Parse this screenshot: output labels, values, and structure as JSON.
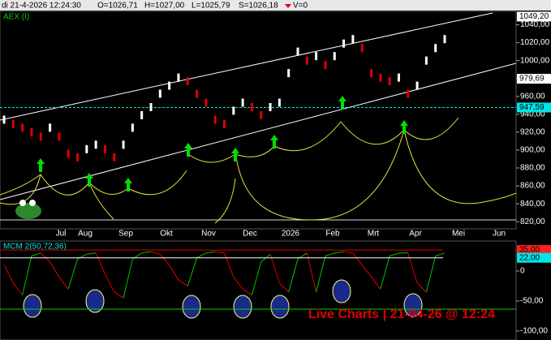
{
  "header": {
    "datetime": "di 21-4-2026 12:24:30",
    "open": "O=1026,71",
    "high": "H=1027,00",
    "low": "L=1025,79",
    "close": "S=1026,18",
    "volume": "V=0"
  },
  "watermark": "Live Charts | 21-04-26 @ 12:24",
  "chart_data": [
    {
      "type": "candles",
      "title": "AEX (I)",
      "values": [
        934,
        929,
        925,
        920,
        915,
        925,
        915,
        896,
        892,
        901,
        906,
        901,
        892,
        906,
        925,
        939,
        948,
        963,
        972,
        981,
        977,
        963,
        953,
        934,
        929,
        944,
        953,
        948,
        939,
        948,
        953,
        986,
        1010,
        1000,
        1005,
        995,
        1005,
        1019,
        1024,
        1014,
        986,
        981,
        977,
        981,
        963,
        972,
        1000,
        1014,
        1024
      ],
      "ylim": [
        812,
        1055
      ],
      "yticks": [
        {
          "value": 820,
          "label": "820,00"
        },
        {
          "value": 840,
          "label": "840,00"
        },
        {
          "value": 860,
          "label": "860,00"
        },
        {
          "value": 880,
          "label": "880,00"
        },
        {
          "value": 900,
          "label": "900,00"
        },
        {
          "value": 920,
          "label": "920,00"
        },
        {
          "value": 940,
          "label": "940,00"
        },
        {
          "value": 960,
          "label": "960,00"
        },
        {
          "value": 980,
          "label": "980,00"
        },
        {
          "value": 1000,
          "label": "1000,00"
        },
        {
          "value": 1020,
          "label": "1020,00"
        },
        {
          "value": 1040,
          "label": "1040,00"
        }
      ],
      "markers": [
        {
          "value": 1049.2,
          "label": "1049,20",
          "color": "#ffffff"
        },
        {
          "value": 979.69,
          "label": "979,69",
          "color": "#ffffff"
        },
        {
          "value": 947.59,
          "label": "947,59",
          "color": "#00e5e5"
        }
      ],
      "x_labels": [
        "Jul",
        "Aug",
        "Sep",
        "Okt",
        "Nov",
        "Dec",
        "2026",
        "Feb",
        "Mrt",
        "Apr",
        "Mei",
        "Jun"
      ]
    },
    {
      "type": "oscillator",
      "title": "MCM 2(50,72,36)",
      "values": [
        10,
        -20,
        -40,
        25,
        30,
        15,
        -10,
        -30,
        20,
        28,
        30,
        -5,
        -35,
        -45,
        20,
        30,
        32,
        28,
        10,
        -15,
        -25,
        22,
        30,
        32,
        30,
        -10,
        -30,
        -40,
        15,
        28,
        -20,
        -35,
        20,
        30,
        -35,
        25,
        30,
        32,
        30,
        10,
        -10,
        -30,
        25,
        30,
        30,
        -20,
        -35,
        25,
        30
      ],
      "ylim": [
        -115,
        50
      ],
      "yticks": [
        {
          "value": 0,
          "label": "0"
        },
        {
          "value": -50,
          "label": "-50,00"
        },
        {
          "value": -100,
          "label": "-100,00"
        }
      ],
      "markers": [
        {
          "value": 35,
          "label": "35,00",
          "color": "#ff2020"
        },
        {
          "value": 22,
          "label": "22,00",
          "color": "#00e5e5"
        }
      ]
    }
  ]
}
